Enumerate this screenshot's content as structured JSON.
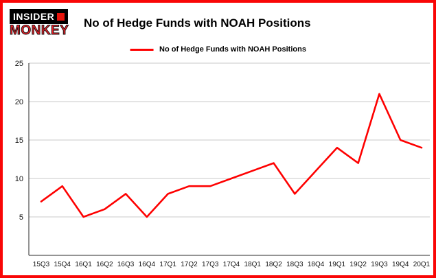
{
  "logo": {
    "line1": "INSIDER",
    "line2": "MONKEY"
  },
  "header": {
    "title": "No of Hedge Funds with NOAH Positions"
  },
  "legend": {
    "label": "No of Hedge Funds with NOAH Positions",
    "color": "#fe0000"
  },
  "chart_data": {
    "type": "line",
    "title": "No of Hedge Funds with NOAH Positions",
    "categories": [
      "15Q3",
      "15Q4",
      "16Q1",
      "16Q2",
      "16Q3",
      "16Q4",
      "17Q1",
      "17Q2",
      "17Q3",
      "17Q4",
      "18Q1",
      "18Q2",
      "18Q3",
      "18Q4",
      "19Q1",
      "19Q2",
      "19Q3",
      "19Q4",
      "20Q1"
    ],
    "values": [
      7,
      9,
      5,
      6,
      8,
      5,
      8,
      9,
      9,
      10,
      11,
      12,
      8,
      11,
      14,
      12,
      21,
      15,
      14
    ],
    "xlabel": "",
    "ylabel": "",
    "ylim": [
      0,
      25
    ],
    "yticks": [
      5,
      10,
      15,
      20,
      25
    ],
    "grid": true,
    "line_color": "#fe0000",
    "legend_position": "top"
  }
}
